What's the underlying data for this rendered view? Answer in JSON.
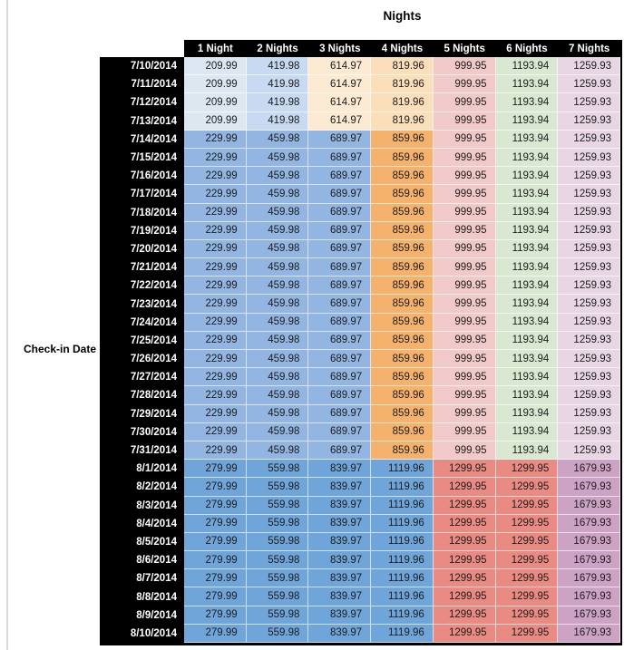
{
  "chart_data": {
    "type": "heatmap",
    "title": "Nights",
    "ylabel": "Check-in Date",
    "xlabel": "Nights",
    "legend": "none",
    "columns": [
      "1 Night",
      "2 Nights",
      "3 Nights",
      "4 Nights",
      "5 Nights",
      "6 Nights",
      "7 Nights"
    ],
    "tiers": {
      "t1": {
        "values": [
          "209.99",
          "419.98",
          "614.97",
          "819.96",
          "999.95",
          "1193.94",
          "1259.93"
        ],
        "colors": [
          "blue_light1",
          "blue_light2",
          "orange_light1",
          "orange_light2",
          "red_light",
          "green_light",
          "purple_light"
        ]
      },
      "t2": {
        "values": [
          "229.99",
          "459.98",
          "689.97",
          "859.96",
          "999.95",
          "1193.94",
          "1259.93"
        ],
        "colors": [
          "blue_mid",
          "blue_mid",
          "blue_mid",
          "orange_mid",
          "red_light",
          "green_light",
          "purple_light"
        ]
      },
      "t3": {
        "values": [
          "279.99",
          "559.98",
          "839.97",
          "1119.96",
          "1299.95",
          "1299.95",
          "1679.93"
        ],
        "colors": [
          "blue_dark",
          "blue_dark",
          "blue_dark",
          "blue_dark",
          "red_mid",
          "red_mid",
          "purple_mid"
        ]
      }
    },
    "rows": [
      {
        "date": "7/10/2014",
        "tier": "t1"
      },
      {
        "date": "7/11/2014",
        "tier": "t1"
      },
      {
        "date": "7/12/2014",
        "tier": "t1"
      },
      {
        "date": "7/13/2014",
        "tier": "t1"
      },
      {
        "date": "7/14/2014",
        "tier": "t2"
      },
      {
        "date": "7/15/2014",
        "tier": "t2"
      },
      {
        "date": "7/16/2014",
        "tier": "t2"
      },
      {
        "date": "7/17/2014",
        "tier": "t2"
      },
      {
        "date": "7/18/2014",
        "tier": "t2"
      },
      {
        "date": "7/19/2014",
        "tier": "t2"
      },
      {
        "date": "7/20/2014",
        "tier": "t2"
      },
      {
        "date": "7/21/2014",
        "tier": "t2"
      },
      {
        "date": "7/22/2014",
        "tier": "t2"
      },
      {
        "date": "7/23/2014",
        "tier": "t2"
      },
      {
        "date": "7/24/2014",
        "tier": "t2"
      },
      {
        "date": "7/25/2014",
        "tier": "t2"
      },
      {
        "date": "7/26/2014",
        "tier": "t2"
      },
      {
        "date": "7/27/2014",
        "tier": "t2"
      },
      {
        "date": "7/28/2014",
        "tier": "t2"
      },
      {
        "date": "7/29/2014",
        "tier": "t2"
      },
      {
        "date": "7/30/2014",
        "tier": "t2"
      },
      {
        "date": "7/31/2014",
        "tier": "t2"
      },
      {
        "date": "8/1/2014",
        "tier": "t3"
      },
      {
        "date": "8/2/2014",
        "tier": "t3"
      },
      {
        "date": "8/3/2014",
        "tier": "t3"
      },
      {
        "date": "8/4/2014",
        "tier": "t3"
      },
      {
        "date": "8/5/2014",
        "tier": "t3"
      },
      {
        "date": "8/6/2014",
        "tier": "t3"
      },
      {
        "date": "8/7/2014",
        "tier": "t3"
      },
      {
        "date": "8/8/2014",
        "tier": "t3"
      },
      {
        "date": "8/9/2014",
        "tier": "t3"
      },
      {
        "date": "8/10/2014",
        "tier": "t3"
      }
    ],
    "palette": {
      "blue_light1": "#dde7f2",
      "blue_light2": "#c7daf1",
      "orange_light1": "#fcead3",
      "orange_light2": "#fbdfbb",
      "red_light": "#f2c9c9",
      "green_light": "#d9e8d1",
      "purple_light": "#e9d6e4",
      "blue_mid": "#92b6e1",
      "orange_mid": "#f5b26d",
      "blue_dark": "#70a5d9",
      "red_mid": "#ea8b83",
      "purple_mid": "#cda3c5"
    },
    "header_bg": "#000000",
    "header_text": "#ffffff"
  }
}
